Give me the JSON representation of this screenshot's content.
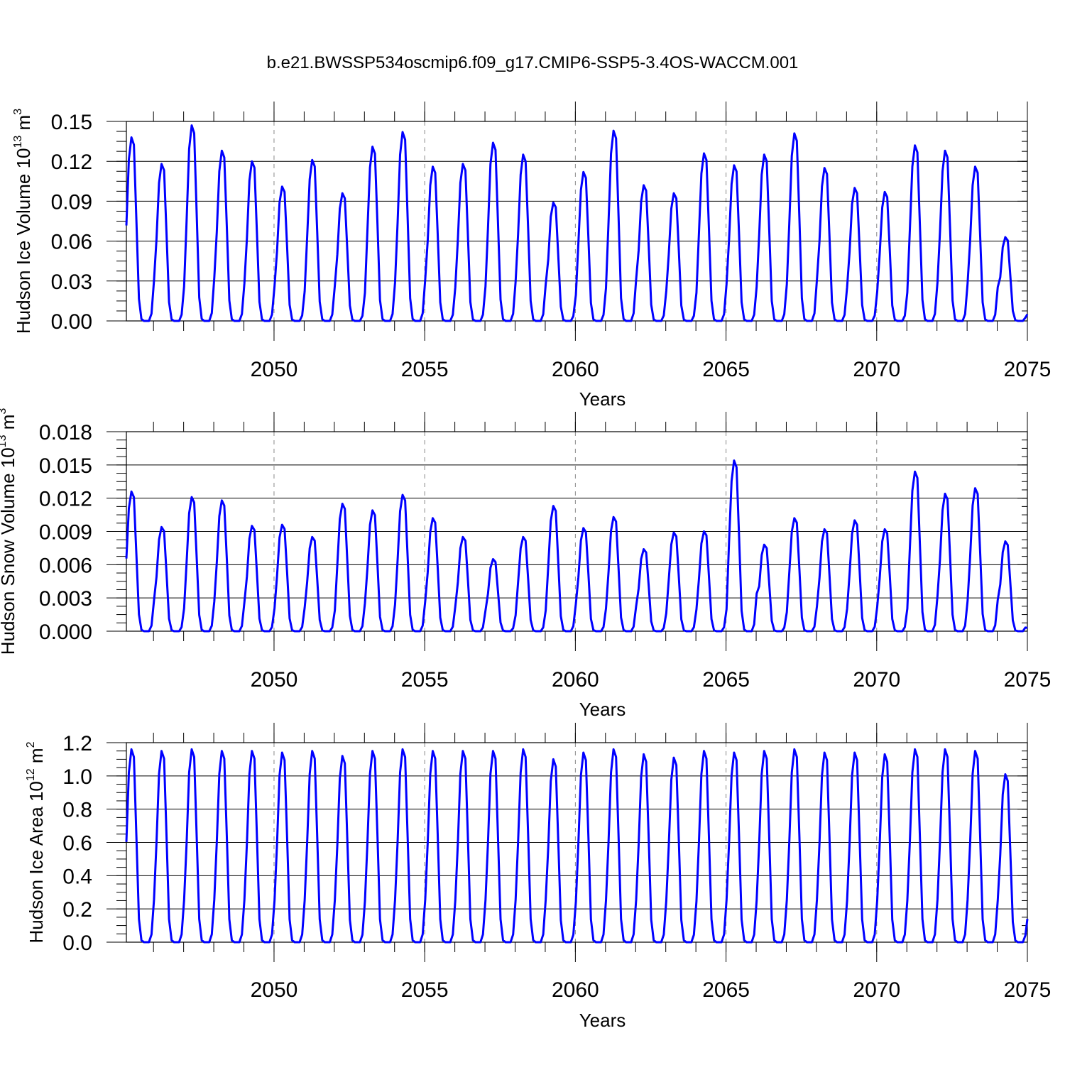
{
  "figure_title": "b.e21.BWSSP534oscmip6.f09_g17.CMIP6-SSP5-3.4OS-WACCM.001",
  "colors": {
    "line": "#0000ff",
    "axis": "#000000",
    "grid": "#888888"
  },
  "chart_data": [
    {
      "type": "line",
      "title": "",
      "ylabel": {
        "text": "Hudson Ice Volume 10",
        "sup1": "13",
        "unit": " m",
        "sup2": "3"
      },
      "xlabel": "Years",
      "xlim": [
        2045.1,
        2075
      ],
      "ylim": [
        0,
        0.15
      ],
      "yticks": [
        0.0,
        0.03,
        0.06,
        0.09,
        0.12,
        0.15
      ],
      "ytick_labels": [
        "0.00",
        "0.03",
        "0.06",
        "0.09",
        "0.12",
        "0.15"
      ],
      "xticks": [
        2050,
        2055,
        2060,
        2065,
        2070,
        2075
      ],
      "xtick_labels": [
        "2050",
        "2055",
        "2060",
        "2065",
        "2070",
        "2075"
      ],
      "start_year": 2045.1,
      "annual_peaks": [
        0.138,
        0.118,
        0.147,
        0.128,
        0.12,
        0.101,
        0.121,
        0.096,
        0.131,
        0.142,
        0.116,
        0.118,
        0.134,
        0.125,
        0.089,
        0.112,
        0.143,
        0.102,
        0.096,
        0.126,
        0.117,
        0.125,
        0.141,
        0.115,
        0.1,
        0.097,
        0.132,
        0.128,
        0.116,
        0.063
      ],
      "end_value": 0.005
    },
    {
      "type": "line",
      "title": "",
      "ylabel": {
        "text": "Hudson Snow Volume 10",
        "sup1": "13",
        "unit": " m",
        "sup2": "3"
      },
      "xlabel": "Years",
      "xlim": [
        2045.1,
        2075
      ],
      "ylim": [
        0,
        0.018
      ],
      "yticks": [
        0.0,
        0.003,
        0.006,
        0.009,
        0.012,
        0.015,
        0.018
      ],
      "ytick_labels": [
        "0.000",
        "0.003",
        "0.006",
        "0.009",
        "0.012",
        "0.015",
        "0.018"
      ],
      "xticks": [
        2050,
        2055,
        2060,
        2065,
        2070,
        2075
      ],
      "xtick_labels": [
        "2050",
        "2055",
        "2060",
        "2065",
        "2070",
        "2075"
      ],
      "start_year": 2045.1,
      "annual_peaks": [
        0.0126,
        0.0094,
        0.0121,
        0.0118,
        0.0095,
        0.0096,
        0.0085,
        0.0115,
        0.0109,
        0.0123,
        0.0102,
        0.0085,
        0.0065,
        0.0085,
        0.0113,
        0.0093,
        0.0103,
        0.0074,
        0.0089,
        0.009,
        0.0154,
        0.0078,
        0.0102,
        0.0092,
        0.01,
        0.0092,
        0.0144,
        0.0124,
        0.0129,
        0.0081
      ],
      "end_value": 0.0003
    },
    {
      "type": "line",
      "title": "",
      "ylabel": {
        "text": "Hudson Ice Area 10",
        "sup1": "12",
        "unit": " m",
        "sup2": "2"
      },
      "xlabel": "Years",
      "xlim": [
        2045.1,
        2075
      ],
      "ylim": [
        0,
        1.2
      ],
      "yticks": [
        0.0,
        0.2,
        0.4,
        0.6,
        0.8,
        1.0,
        1.2
      ],
      "ytick_labels": [
        "0.0",
        "0.2",
        "0.4",
        "0.6",
        "0.8",
        "1.0",
        "1.2"
      ],
      "xticks": [
        2050,
        2055,
        2060,
        2065,
        2070,
        2075
      ],
      "xtick_labels": [
        "2050",
        "2055",
        "2060",
        "2065",
        "2070",
        "2075"
      ],
      "start_year": 2045.1,
      "annual_peaks": [
        1.16,
        1.15,
        1.16,
        1.15,
        1.15,
        1.14,
        1.15,
        1.12,
        1.15,
        1.16,
        1.15,
        1.15,
        1.15,
        1.16,
        1.1,
        1.14,
        1.16,
        1.13,
        1.11,
        1.15,
        1.14,
        1.15,
        1.16,
        1.14,
        1.14,
        1.13,
        1.16,
        1.16,
        1.15,
        1.01
      ],
      "end_value": 0.14
    }
  ]
}
